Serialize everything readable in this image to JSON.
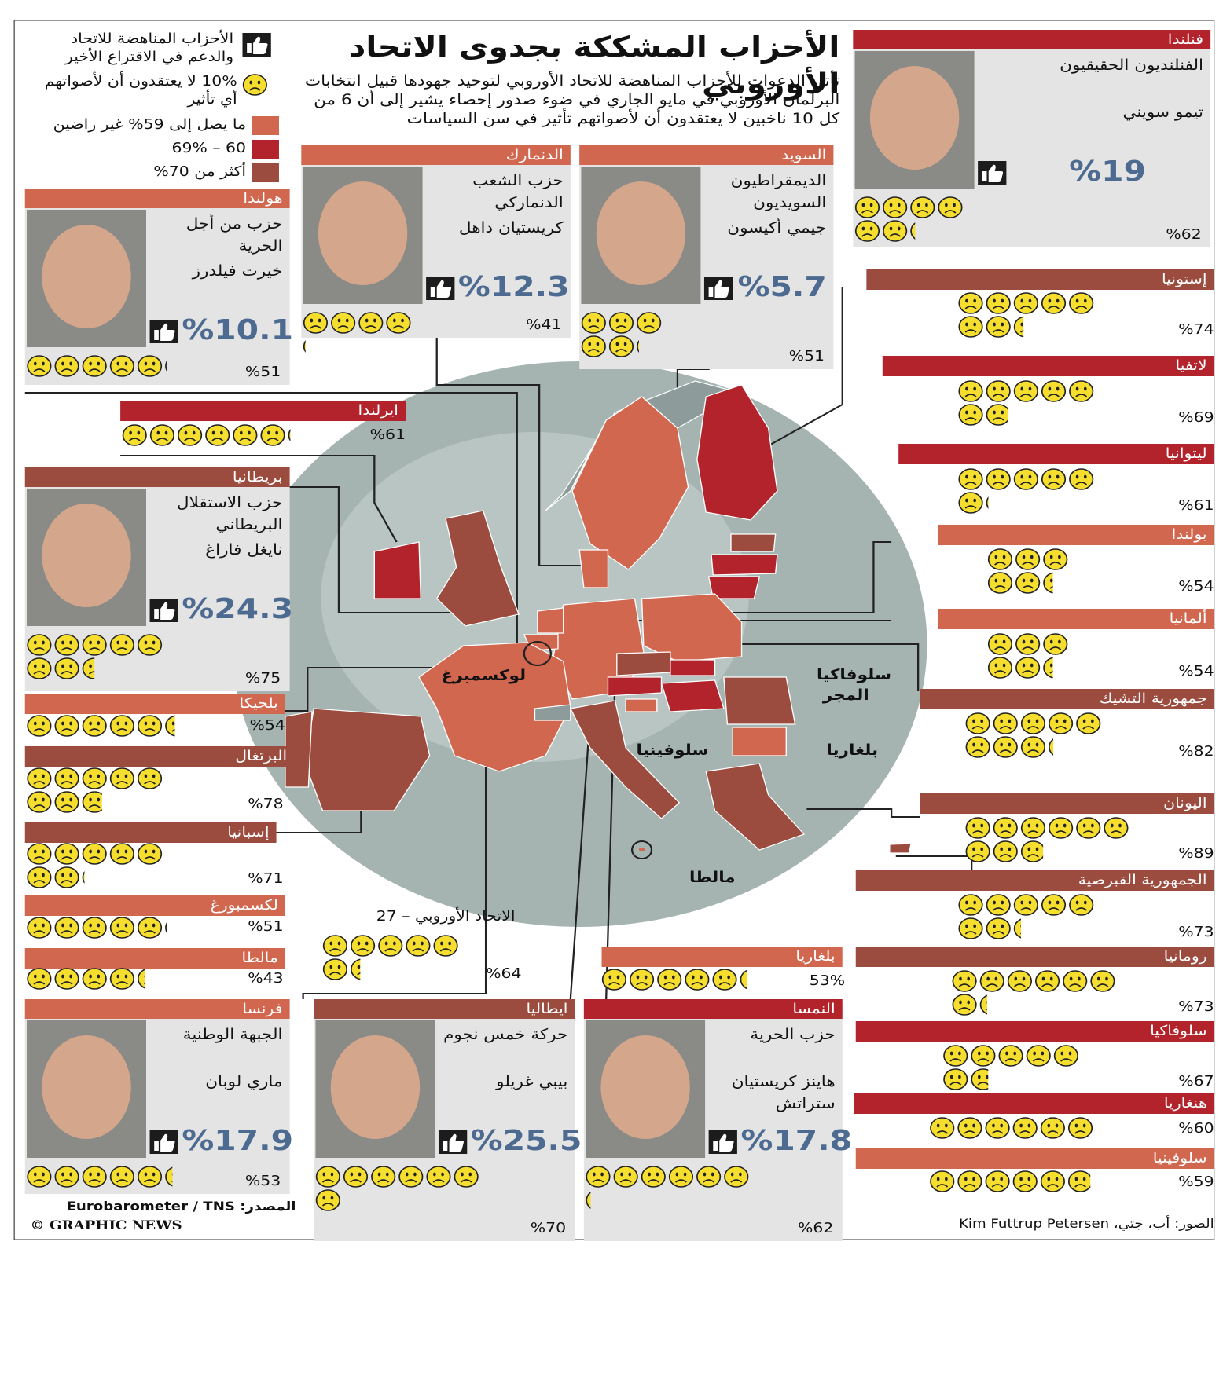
{
  "header": {
    "title": "الأحزاب المشككة بجدوى الاتحاد الأوروبي",
    "intro": "تأتي الدعوات للأحزاب المناهضة للاتحاد الأوروبي لتوحيد جهودها قبيل انتخابات البرلمان الأوروبي في مايو الجاري في ضوء صدور إحصاء يشير إلى أن 6 من كل 10 ناخبين لا يعتقدون أن لأصواتهم تأثير في سن السياسات"
  },
  "legend": {
    "support": "الأحزاب المناهضة للاتحاد والدعم في الاقتراع الأخير",
    "face": "10% لا يعتقدون أن لأصواتهم أي تأثير",
    "bands": [
      {
        "label": "ما يصل إلى 59% غير راضين",
        "color": "#d1674f"
      },
      {
        "label": "60 – 69%",
        "color": "#b3232c"
      },
      {
        "label": "أكثر من 70%",
        "color": "#9c4b3f"
      }
    ]
  },
  "parties": [
    {
      "country": "فنلندا",
      "party": "الفنلنديون الحقيقيون",
      "leader": "تيمو سويني",
      "support": "%19",
      "dissatisfied": 62,
      "dissatisfied_label": "%62",
      "color": "#b3232c"
    },
    {
      "country": "السويد",
      "party": "الديمقراطيون السويديون",
      "leader": "جيمي أكيسون",
      "support": "%5.7",
      "dissatisfied": 51,
      "dissatisfied_label": "%51",
      "color": "#d1674f"
    },
    {
      "country": "الدنمارك",
      "party": "حزب الشعب الدنماركي",
      "leader": "كريستيان داهل",
      "support": "%12.3",
      "dissatisfied": 41,
      "dissatisfied_label": "%41",
      "color": "#d1674f"
    },
    {
      "country": "هولندا",
      "party": "حزب من أجل الحرية",
      "leader": "خيرت فيلدرز",
      "support": "%10.1",
      "dissatisfied": 51,
      "dissatisfied_label": "%51",
      "color": "#d1674f"
    },
    {
      "country": "بريطانيا",
      "party": "حزب الاستقلال البريطاني",
      "leader": "نايغل فاراغ",
      "support": "%24.3",
      "dissatisfied": 75,
      "dissatisfied_label": "%75",
      "color": "#9c4b3f"
    },
    {
      "country": "فرنسا",
      "party": "الجبهة الوطنية",
      "leader": "ماري لوبان",
      "support": "%17.9",
      "dissatisfied": 53,
      "dissatisfied_label": "%53",
      "color": "#d1674f"
    },
    {
      "country": "ايطاليا",
      "party": "حركة خمس نجوم",
      "leader": "بيبي غريلو",
      "support": "%25.5",
      "dissatisfied": 70,
      "dissatisfied_label": "%70",
      "color": "#9c4b3f"
    },
    {
      "country": "النمسا",
      "party": "حزب الحرية",
      "leader": "هاينز كريستيان ستراتش",
      "support": "%17.8",
      "dissatisfied": 62,
      "dissatisfied_label": "%62",
      "color": "#b3232c"
    }
  ],
  "countries": [
    {
      "name": "إستونيا",
      "dissatisfied": 74,
      "dissatisfied_label": "%74",
      "color": "#9c4b3f"
    },
    {
      "name": "لاتفيا",
      "dissatisfied": 69,
      "dissatisfied_label": "%69",
      "color": "#b3232c"
    },
    {
      "name": "ليتوانيا",
      "dissatisfied": 61,
      "dissatisfied_label": "%61",
      "color": "#b3232c"
    },
    {
      "name": "بولندا",
      "dissatisfied": 54,
      "dissatisfied_label": "%54",
      "color": "#d1674f"
    },
    {
      "name": "ألمانيا",
      "dissatisfied": 54,
      "dissatisfied_label": "%54",
      "color": "#d1674f"
    },
    {
      "name": "جمهورية التشيك",
      "dissatisfied": 82,
      "dissatisfied_label": "%82",
      "color": "#9c4b3f"
    },
    {
      "name": "اليونان",
      "dissatisfied": 89,
      "dissatisfied_label": "%89",
      "color": "#9c4b3f"
    },
    {
      "name": "الجمهورية القبرصية",
      "dissatisfied": 73,
      "dissatisfied_label": "%73",
      "color": "#9c4b3f"
    },
    {
      "name": "رومانيا",
      "dissatisfied": 73,
      "dissatisfied_label": "%73",
      "color": "#9c4b3f"
    },
    {
      "name": "سلوفاكيا",
      "dissatisfied": 67,
      "dissatisfied_label": "%67",
      "color": "#b3232c"
    },
    {
      "name": "هنغاريا",
      "dissatisfied": 60,
      "dissatisfied_label": "%60",
      "color": "#b3232c"
    },
    {
      "name": "سلوفينيا",
      "dissatisfied": 59,
      "dissatisfied_label": "%59",
      "color": "#d1674f"
    },
    {
      "name": "ايرلندا",
      "dissatisfied": 61,
      "dissatisfied_label": "%61",
      "color": "#b3232c"
    },
    {
      "name": "بلجيكا",
      "dissatisfied": 54,
      "dissatisfied_label": "%54",
      "color": "#d1674f"
    },
    {
      "name": "البرتغال",
      "dissatisfied": 78,
      "dissatisfied_label": "%78",
      "color": "#9c4b3f"
    },
    {
      "name": "إسبانيا",
      "dissatisfied": 71,
      "dissatisfied_label": "%71",
      "color": "#9c4b3f"
    },
    {
      "name": "لكسمبورغ",
      "dissatisfied": 51,
      "dissatisfied_label": "%51",
      "color": "#d1674f"
    },
    {
      "name": "مالطا",
      "dissatisfied": 43,
      "dissatisfied_label": "%43",
      "color": "#d1674f"
    },
    {
      "name": "بلغاريا",
      "dissatisfied": 53,
      "dissatisfied_label": "53%",
      "color": "#d1674f"
    }
  ],
  "eu": {
    "label": "الاتحاد الأوروبي – 27",
    "dissatisfied": 64,
    "dissatisfied_label": "%64"
  },
  "map_labels": [
    "لوكسمبرغ",
    "سلوفاكيا",
    "المجر",
    "سلوفينيا",
    "بلغاريا",
    "مالطا"
  ],
  "footer": {
    "source": "المصدر: Eurobarometer / TNS",
    "copyright": "© GRAPHIC NEWS",
    "photos": "الصور: أب، جتي، Kim Futtrup Petersen"
  }
}
